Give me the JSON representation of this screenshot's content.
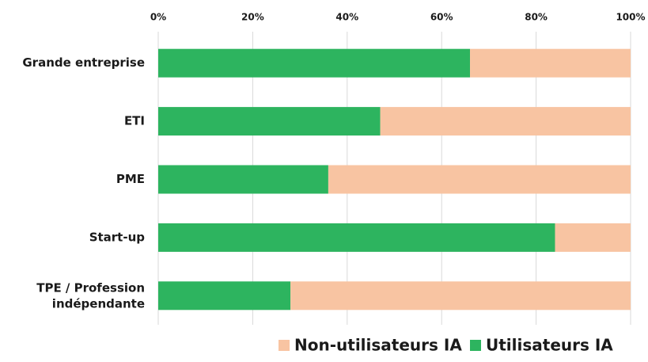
{
  "chart_data": {
    "type": "stacked-bar-horizontal",
    "categories": [
      "Grande entreprise",
      "ETI",
      "PME",
      "Start-up",
      "TPE / Profession\nindépendante"
    ],
    "series": [
      {
        "name": "Utilisateurs IA",
        "color": "#2db45f",
        "values": [
          66,
          47,
          36,
          84,
          28
        ]
      },
      {
        "name": "Non-utilisateurs IA",
        "color": "#f8c4a2",
        "values": [
          34,
          53,
          64,
          16,
          72
        ]
      }
    ],
    "xlim": [
      0,
      100
    ],
    "xticks": [
      {
        "value": 0,
        "label": "0%"
      },
      {
        "value": 20,
        "label": "20%"
      },
      {
        "value": 40,
        "label": "40%"
      },
      {
        "value": 60,
        "label": "60%"
      },
      {
        "value": 80,
        "label": "80%"
      },
      {
        "value": 100,
        "label": "100%"
      }
    ],
    "grid": true,
    "legend": "bottom"
  }
}
